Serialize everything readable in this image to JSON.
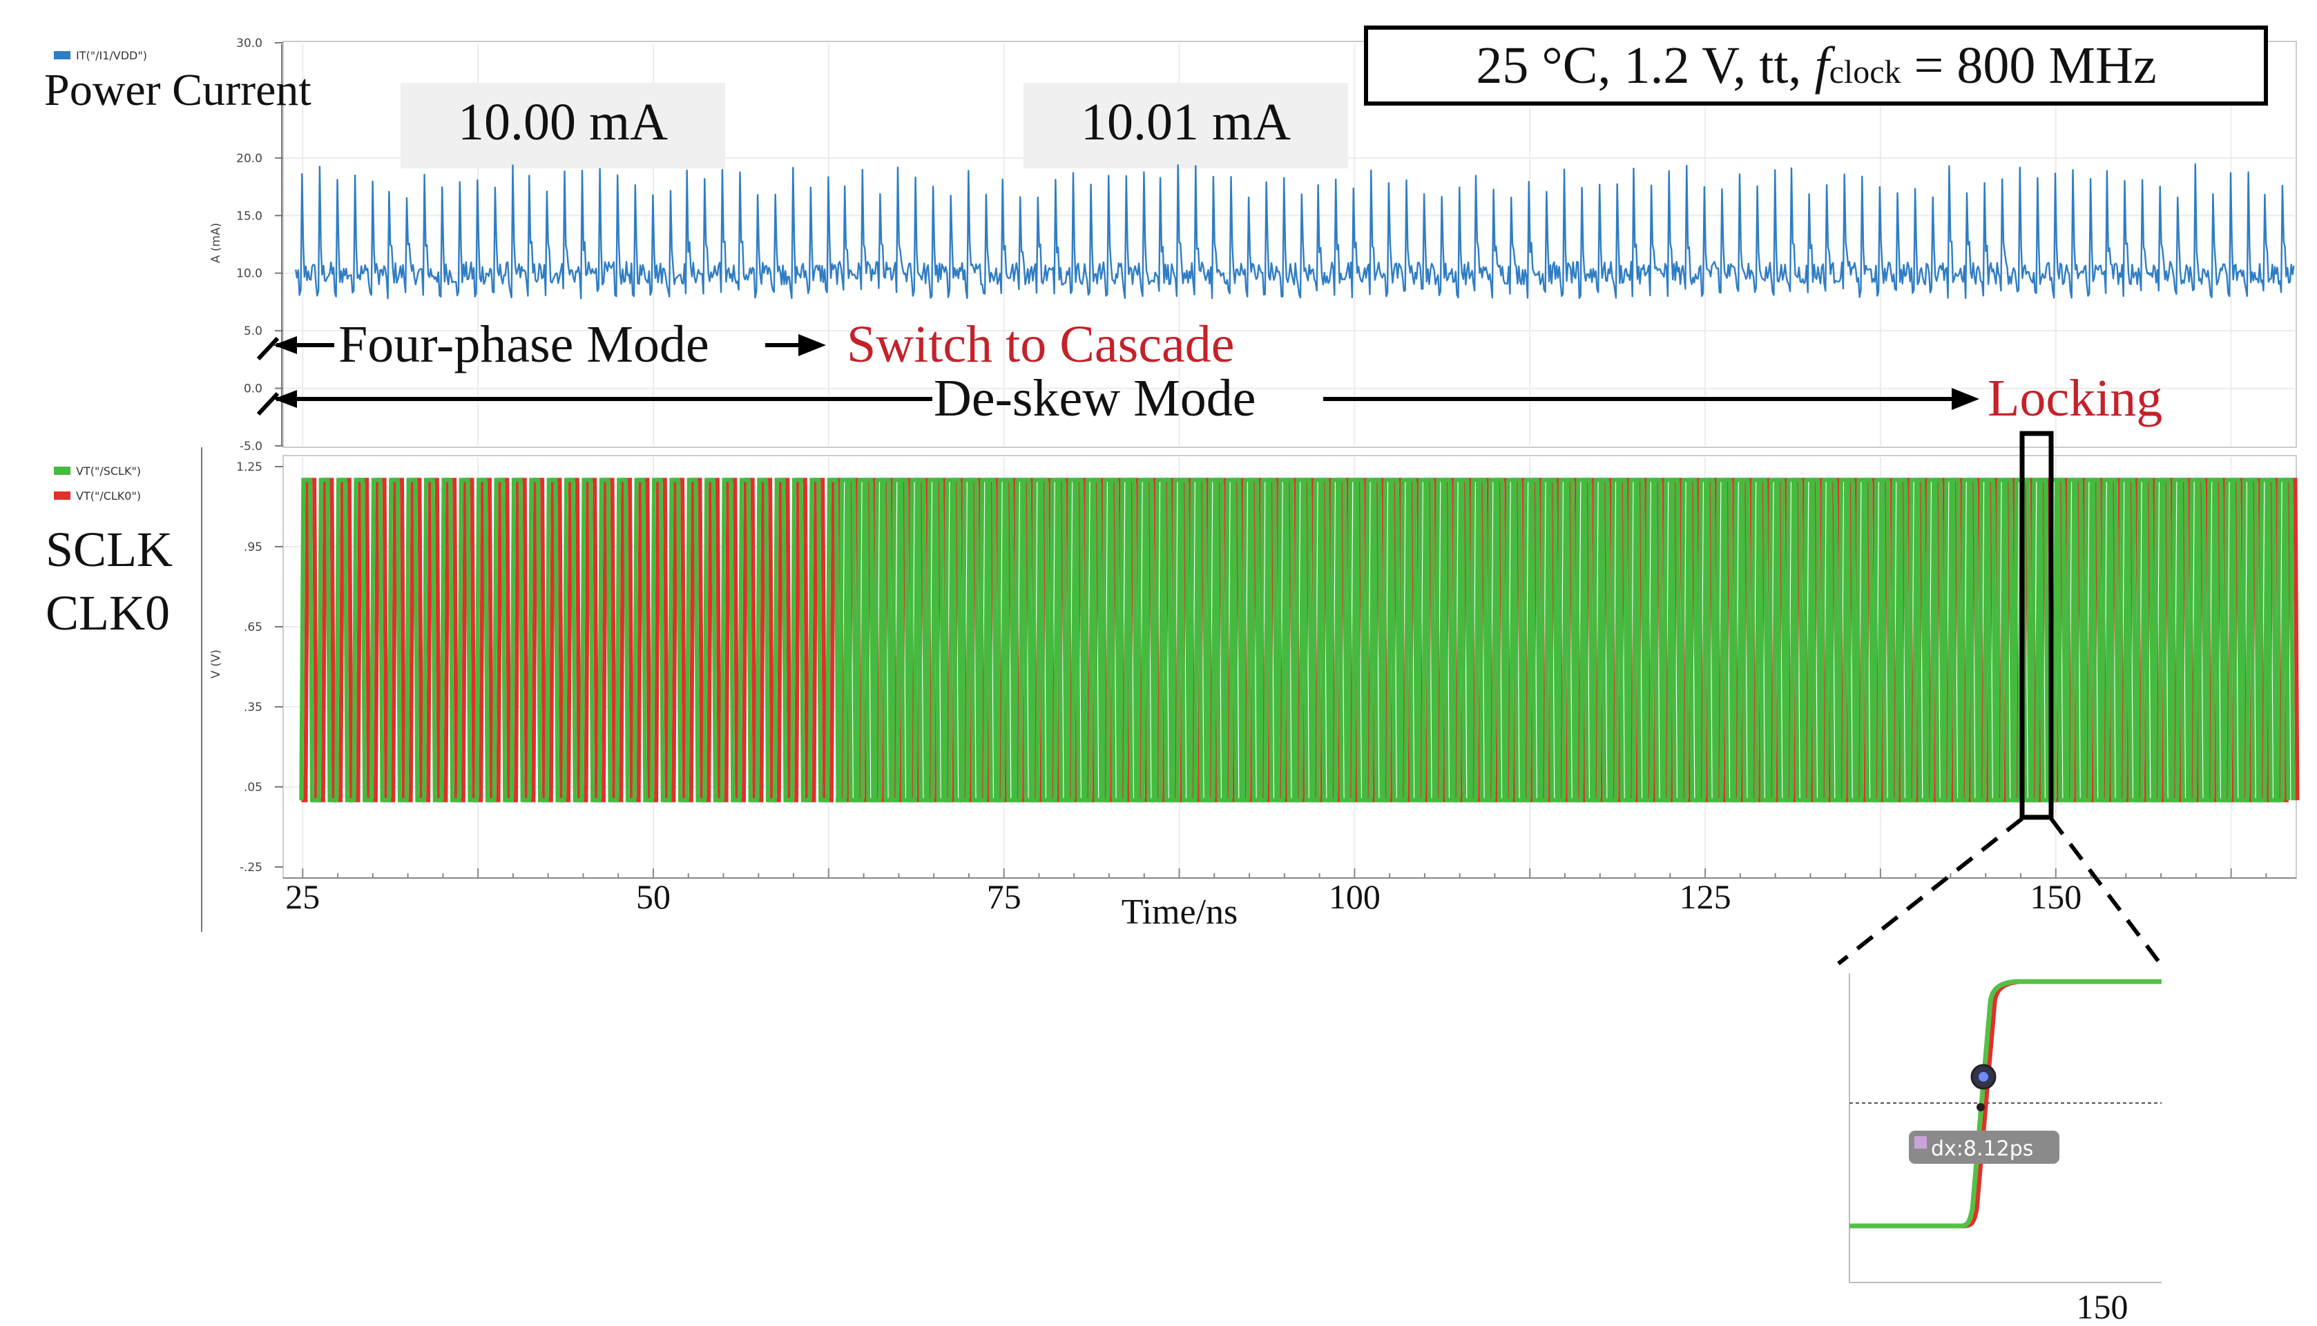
{
  "chart_data": [
    {
      "type": "line",
      "name": "power-current",
      "legend": [
        "IT(\"/I1/VDD\")"
      ],
      "side_label": "Power Current",
      "ylabel": "A (mA)",
      "ylim": [
        -5.0,
        30.0
      ],
      "yticks": [
        "30.0",
        "20.0",
        "15.0",
        "10.0",
        "5.0",
        "0.0",
        "-5.0"
      ],
      "xlim": [
        24,
        167
      ],
      "x_period_ns": 1.25,
      "baseline_mA": 10.0,
      "noise_mA": 1.0,
      "spike_peak_mA": [
        16.5,
        19.5
      ],
      "averages": [
        {
          "label": "10.00 mA",
          "value": 10.0,
          "range_ns": [
            25,
            63
          ]
        },
        {
          "label": "10.01 mA",
          "value": 10.01,
          "range_ns": [
            63,
            167
          ]
        }
      ],
      "color": "#2f7dc4"
    },
    {
      "type": "line",
      "name": "clock-voltages",
      "legend": [
        "VT(\"/SCLK\")",
        "VT(\"/CLK0\")"
      ],
      "side_labels": [
        "SCLK",
        "CLK0"
      ],
      "ylabel": "V (V)",
      "ylim": [
        -0.25,
        1.25
      ],
      "yticks": [
        ".05",
        ".35",
        ".65",
        ".95",
        "1.25",
        "-.25"
      ],
      "xlabel": "Time/ns",
      "xticks": [
        25,
        50,
        75,
        100,
        125,
        150
      ],
      "xlim": [
        24,
        167
      ],
      "period_ns": 1.25,
      "series": [
        {
          "name": "SCLK",
          "color": "#44bb3f",
          "low": 0.0,
          "high": 1.2
        },
        {
          "name": "CLK0",
          "color": "#e0302a",
          "low": 0.0,
          "high": 1.2
        }
      ],
      "color": "#44bb3f"
    },
    {
      "type": "line",
      "name": "zoom-inset",
      "xtick": "150",
      "delta_label": "dx:8.12ps",
      "delta_ps": 8.12,
      "color": "#55c046"
    }
  ],
  "annotations": {
    "conditions": "25 °C, 1.2 V, tt, ",
    "f_symbol": "f",
    "f_sub": "clock",
    "f_value": " = 800 MHz",
    "four_phase": "Four-phase Mode",
    "switch": "Switch to Cascade",
    "deskew": "De-skew  Mode",
    "locking": "Locking",
    "highlight_color": "#c4222a"
  }
}
